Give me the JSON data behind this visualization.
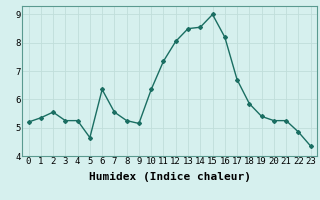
{
  "x": [
    0,
    1,
    2,
    3,
    4,
    5,
    6,
    7,
    8,
    9,
    10,
    11,
    12,
    13,
    14,
    15,
    16,
    17,
    18,
    19,
    20,
    21,
    22,
    23
  ],
  "y": [
    5.2,
    5.35,
    5.55,
    5.25,
    5.25,
    4.65,
    6.35,
    5.55,
    5.25,
    5.15,
    6.35,
    7.35,
    8.05,
    8.5,
    8.55,
    9.0,
    8.2,
    6.7,
    5.85,
    5.4,
    5.25,
    5.25,
    4.85,
    4.35
  ],
  "xlim": [
    -0.5,
    23.5
  ],
  "ylim": [
    4.0,
    9.3
  ],
  "xticks": [
    0,
    1,
    2,
    3,
    4,
    5,
    6,
    7,
    8,
    9,
    10,
    11,
    12,
    13,
    14,
    15,
    16,
    17,
    18,
    19,
    20,
    21,
    22,
    23
  ],
  "yticks": [
    4,
    5,
    6,
    7,
    8,
    9
  ],
  "xlabel": "Humidex (Indice chaleur)",
  "line_color": "#1a6e62",
  "bg_color": "#d6f0ee",
  "grid_color": "#c0deda",
  "tick_label_fontsize": 6.5,
  "xlabel_fontsize": 8,
  "marker": "D",
  "marker_size": 2.0,
  "line_width": 1.0
}
